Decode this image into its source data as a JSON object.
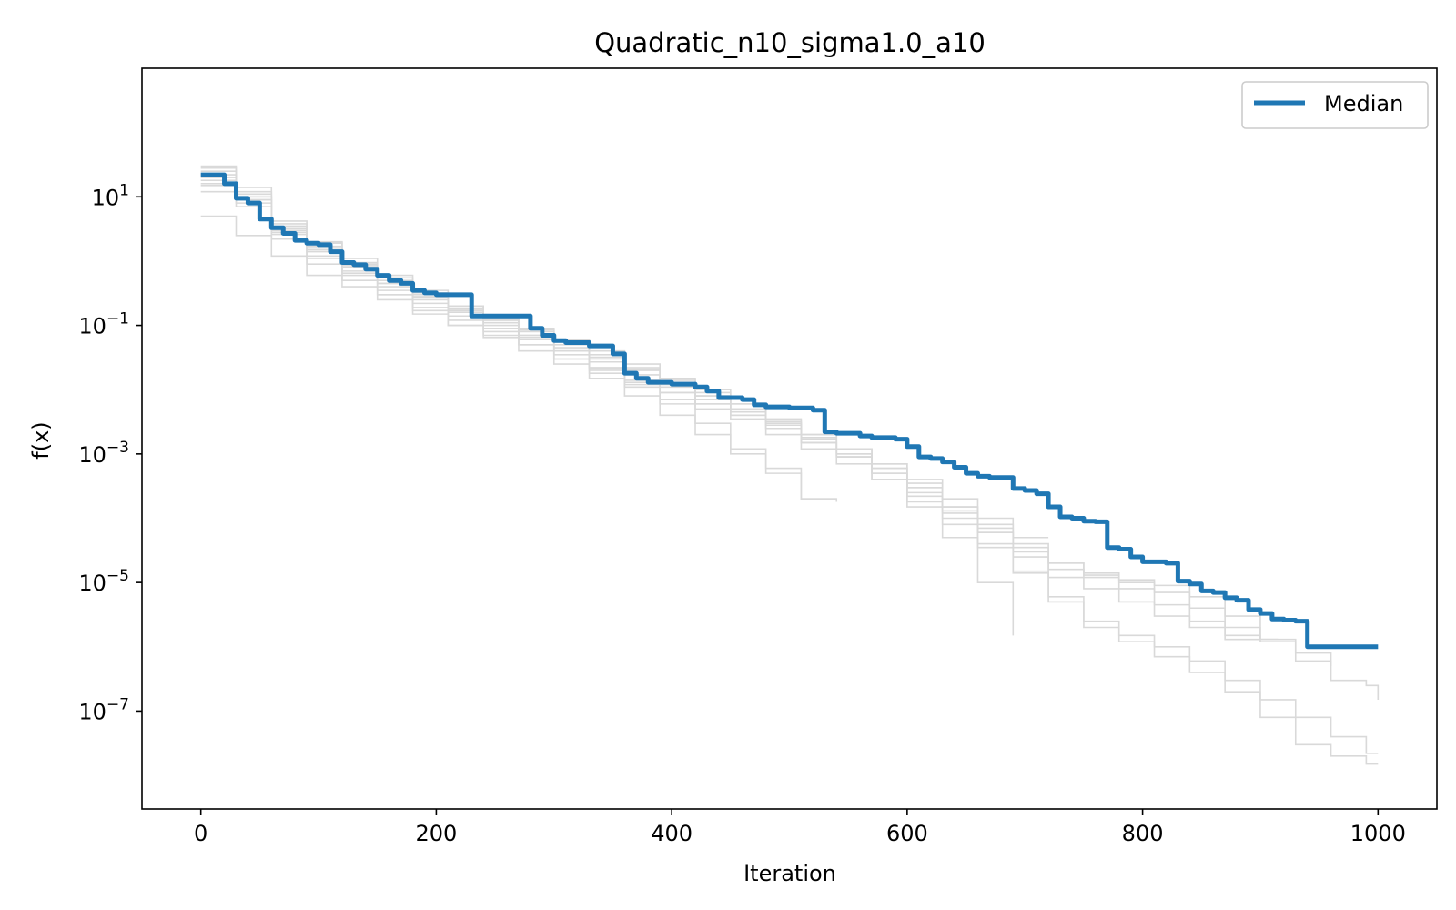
{
  "chart_data": {
    "type": "line",
    "title": "Quadratic_n10_sigma1.0_a10",
    "xlabel": "Iteration",
    "ylabel": "f(x)",
    "xlim": [
      -50,
      1050
    ],
    "ylim": [
      3e-09,
      1000.0
    ],
    "y_scale": "log",
    "grid": false,
    "legend_position": "upper right",
    "x_ticks": [
      0,
      200,
      400,
      600,
      800,
      1000
    ],
    "x_tick_labels": [
      "0",
      "200",
      "400",
      "600",
      "800",
      "1000"
    ],
    "y_ticks": [
      10,
      0.1,
      0.001,
      1e-05,
      1e-07
    ],
    "y_tick_labels": [
      {
        "base": "10",
        "exp": "1"
      },
      {
        "base": "10",
        "exp": "−1"
      },
      {
        "base": "10",
        "exp": "−3"
      },
      {
        "base": "10",
        "exp": "−5"
      },
      {
        "base": "10",
        "exp": "−7"
      }
    ],
    "colors": {
      "median": "#1f77b4",
      "runs": "#d9d9d9"
    },
    "series": [
      {
        "name": "Median",
        "style": "median",
        "x": [
          0,
          20,
          30,
          40,
          50,
          60,
          70,
          80,
          90,
          100,
          110,
          120,
          130,
          140,
          150,
          160,
          170,
          180,
          190,
          200,
          230,
          240,
          250,
          280,
          290,
          300,
          310,
          330,
          350,
          360,
          370,
          380,
          400,
          420,
          430,
          440,
          460,
          470,
          480,
          500,
          520,
          530,
          540,
          560,
          570,
          590,
          600,
          610,
          620,
          630,
          640,
          650,
          660,
          670,
          680,
          690,
          700,
          710,
          720,
          730,
          740,
          750,
          760,
          770,
          780,
          790,
          800,
          810,
          820,
          830,
          840,
          850,
          860,
          870,
          880,
          890,
          900,
          910,
          920,
          930,
          940,
          1000
        ],
        "values": [
          22,
          16,
          9.5,
          8,
          4.5,
          3.3,
          2.7,
          2.1,
          1.9,
          1.8,
          1.4,
          0.95,
          0.88,
          0.75,
          0.6,
          0.5,
          0.45,
          0.35,
          0.32,
          0.3,
          0.14,
          0.14,
          0.14,
          0.09,
          0.07,
          0.058,
          0.054,
          0.048,
          0.036,
          0.018,
          0.015,
          0.013,
          0.0122,
          0.011,
          0.0095,
          0.0075,
          0.007,
          0.0058,
          0.0054,
          0.0052,
          0.0048,
          0.0022,
          0.0021,
          0.0019,
          0.0018,
          0.0017,
          0.0013,
          0.0009,
          0.00085,
          0.00075,
          0.00062,
          0.0005,
          0.00045,
          0.00043,
          0.00043,
          0.00029,
          0.00027,
          0.00024,
          0.00015,
          0.000105,
          0.0001,
          9e-05,
          8.8e-05,
          3.5e-05,
          3.3e-05,
          2.5e-05,
          2.1e-05,
          2.1e-05,
          2e-05,
          1.05e-05,
          9.5e-06,
          7.4e-06,
          7e-06,
          5.8e-06,
          5.3e-06,
          3.8e-06,
          3.3e-06,
          2.7e-06,
          2.6e-06,
          2.5e-06,
          1e-06,
          1e-06
        ]
      },
      {
        "style": "run",
        "x": [
          0,
          30,
          60,
          90,
          120,
          150,
          180,
          210,
          240,
          270,
          300,
          330,
          360,
          390,
          420,
          450,
          480,
          510,
          540
        ],
        "values": [
          30,
          14,
          3.5,
          2.0,
          1.1,
          0.6,
          0.35,
          0.2,
          0.12,
          0.07,
          0.04,
          0.022,
          0.012,
          0.006,
          0.003,
          0.0012,
          0.0006,
          0.0002,
          0.00018
        ]
      },
      {
        "style": "run",
        "x": [
          0,
          30,
          60,
          90,
          120,
          150,
          180,
          210,
          240,
          270,
          300,
          330,
          360,
          390,
          420,
          450,
          480,
          510,
          540,
          570,
          600,
          630,
          660,
          690,
          720,
          750,
          780,
          810,
          840,
          870,
          900,
          915
        ],
        "values": [
          25,
          12,
          3.0,
          1.5,
          0.9,
          0.5,
          0.3,
          0.2,
          0.13,
          0.09,
          0.06,
          0.04,
          0.025,
          0.015,
          0.01,
          0.006,
          0.003,
          0.0015,
          0.0009,
          0.0005,
          0.00025,
          0.00012,
          6e-05,
          3.5e-05,
          2e-05,
          1.4e-05,
          8e-06,
          4.5e-06,
          2.5e-06,
          1.5e-06,
          1.3e-06,
          1.3e-06
        ]
      },
      {
        "style": "run",
        "x": [
          0,
          30,
          60,
          90,
          120,
          150,
          180,
          210,
          240,
          270,
          300,
          330,
          360,
          390,
          420,
          450,
          480,
          510,
          540,
          570,
          600,
          630,
          660,
          690,
          720,
          750,
          780,
          810,
          840,
          870,
          900,
          930,
          960,
          990,
          1000
        ],
        "values": [
          20,
          10,
          3.8,
          1.6,
          0.8,
          0.45,
          0.28,
          0.17,
          0.11,
          0.07,
          0.045,
          0.03,
          0.02,
          0.012,
          0.008,
          0.005,
          0.003,
          0.0018,
          0.001,
          0.0006,
          0.0003,
          0.00015,
          8e-05,
          4e-05,
          2e-05,
          1.3e-05,
          1.1e-05,
          9e-06,
          6e-06,
          3e-06,
          1.3e-06,
          6e-07,
          3e-07,
          2.5e-07,
          1.5e-07
        ]
      },
      {
        "style": "run",
        "x": [
          0,
          30,
          60,
          90,
          120,
          150,
          180,
          210,
          240,
          270,
          300,
          330,
          360,
          390,
          420,
          450,
          480,
          510,
          540,
          570,
          600,
          630,
          660,
          690,
          720,
          750,
          780,
          810,
          840,
          870,
          900,
          930,
          960,
          990,
          1000
        ],
        "values": [
          18,
          9,
          3.2,
          1.4,
          0.7,
          0.35,
          0.22,
          0.14,
          0.09,
          0.06,
          0.035,
          0.022,
          0.014,
          0.009,
          0.006,
          0.004,
          0.0025,
          0.0015,
          0.0009,
          0.0005,
          0.00022,
          0.0001,
          4e-05,
          1.5e-05,
          6e-06,
          2.5e-06,
          1.5e-06,
          1e-06,
          6e-07,
          3e-07,
          1.5e-07,
          8e-08,
          4e-08,
          2.2e-08,
          2.2e-08
        ]
      },
      {
        "style": "run",
        "x": [
          0,
          30,
          60,
          90,
          120,
          150,
          180,
          210,
          240,
          270,
          300,
          330,
          360,
          390,
          420,
          450,
          480,
          510,
          540,
          570,
          600,
          630,
          660,
          690,
          720,
          750,
          780,
          810,
          840,
          870,
          900,
          930,
          960,
          990,
          1000
        ],
        "values": [
          15,
          8,
          2.8,
          1.2,
          0.6,
          0.3,
          0.19,
          0.12,
          0.08,
          0.05,
          0.03,
          0.018,
          0.011,
          0.007,
          0.005,
          0.0035,
          0.002,
          0.0012,
          0.0007,
          0.0004,
          0.00018,
          8e-05,
          3.5e-05,
          1.4e-05,
          5e-06,
          2e-06,
          1.2e-06,
          7e-07,
          4e-07,
          2e-07,
          8e-08,
          3e-08,
          2e-08,
          1.5e-08,
          1.5e-08
        ]
      },
      {
        "style": "run",
        "x": [
          0,
          30,
          60,
          90,
          120,
          150,
          180,
          210,
          240,
          270,
          300,
          330,
          360,
          390,
          420,
          450,
          480,
          510,
          540,
          570,
          600,
          630,
          660,
          690
        ],
        "values": [
          5,
          2.5,
          1.2,
          0.6,
          0.4,
          0.25,
          0.15,
          0.1,
          0.07,
          0.05,
          0.03,
          0.02,
          0.013,
          0.009,
          0.006,
          0.004,
          0.0025,
          0.0015,
          0.0009,
          0.0004,
          0.00015,
          5e-05,
          1e-05,
          1.5e-06
        ]
      },
      {
        "style": "run",
        "x": [
          0,
          30,
          60,
          90,
          120,
          150,
          180,
          210,
          240,
          270,
          300,
          330,
          360,
          390,
          420,
          450,
          480,
          510,
          540,
          570,
          600,
          630,
          660,
          690,
          720,
          750,
          780,
          810,
          840,
          870,
          900,
          915
        ],
        "values": [
          28,
          11,
          4.2,
          1.9,
          0.95,
          0.55,
          0.32,
          0.2,
          0.13,
          0.085,
          0.055,
          0.035,
          0.022,
          0.014,
          0.009,
          0.006,
          0.0035,
          0.002,
          0.0012,
          0.0007,
          0.00035,
          0.00015,
          6e-05,
          2.5e-05,
          1.2e-05,
          8e-06,
          5e-06,
          3e-06,
          2e-06,
          1.3e-06,
          1.3e-06,
          1.3e-06
        ]
      },
      {
        "style": "run",
        "x": [
          0,
          30,
          60,
          90,
          120,
          150,
          180,
          210,
          240,
          270,
          300,
          330,
          360,
          390,
          420,
          450,
          480,
          510,
          540,
          570,
          600,
          630,
          660,
          690,
          720,
          750,
          780,
          810,
          840,
          870,
          900,
          930,
          960
        ],
        "values": [
          12,
          7,
          2.6,
          1.1,
          0.65,
          0.4,
          0.25,
          0.16,
          0.1,
          0.065,
          0.04,
          0.027,
          0.017,
          0.011,
          0.007,
          0.0045,
          0.0028,
          0.0017,
          0.001,
          0.0006,
          0.0003,
          0.00013,
          7e-05,
          3e-05,
          1.6e-05,
          1.2e-05,
          1e-05,
          7e-06,
          4e-06,
          2e-06,
          1.2e-06,
          8e-07,
          5e-07
        ]
      },
      {
        "style": "run",
        "x": [
          0,
          30,
          60,
          90,
          120,
          150,
          180,
          210,
          240,
          270,
          300,
          330,
          360,
          390,
          420,
          450,
          480,
          510,
          540
        ],
        "values": [
          22,
          9,
          2.2,
          0.9,
          0.5,
          0.3,
          0.17,
          0.1,
          0.065,
          0.04,
          0.025,
          0.015,
          0.008,
          0.004,
          0.002,
          0.001,
          0.0005,
          0.0002,
          0.0002
        ]
      },
      {
        "style": "run",
        "x": [
          0,
          30,
          60,
          90,
          120,
          150,
          180,
          210,
          240,
          270,
          300,
          330,
          360,
          390,
          420,
          450,
          480,
          510,
          540,
          570,
          600,
          630,
          660,
          690,
          720
        ],
        "values": [
          16,
          10,
          3.5,
          1.7,
          0.85,
          0.45,
          0.27,
          0.18,
          0.12,
          0.08,
          0.05,
          0.032,
          0.02,
          0.013,
          0.008,
          0.005,
          0.0032,
          0.002,
          0.0012,
          0.0007,
          0.0004,
          0.0002,
          0.0001,
          5e-05,
          5e-05
        ]
      }
    ]
  }
}
